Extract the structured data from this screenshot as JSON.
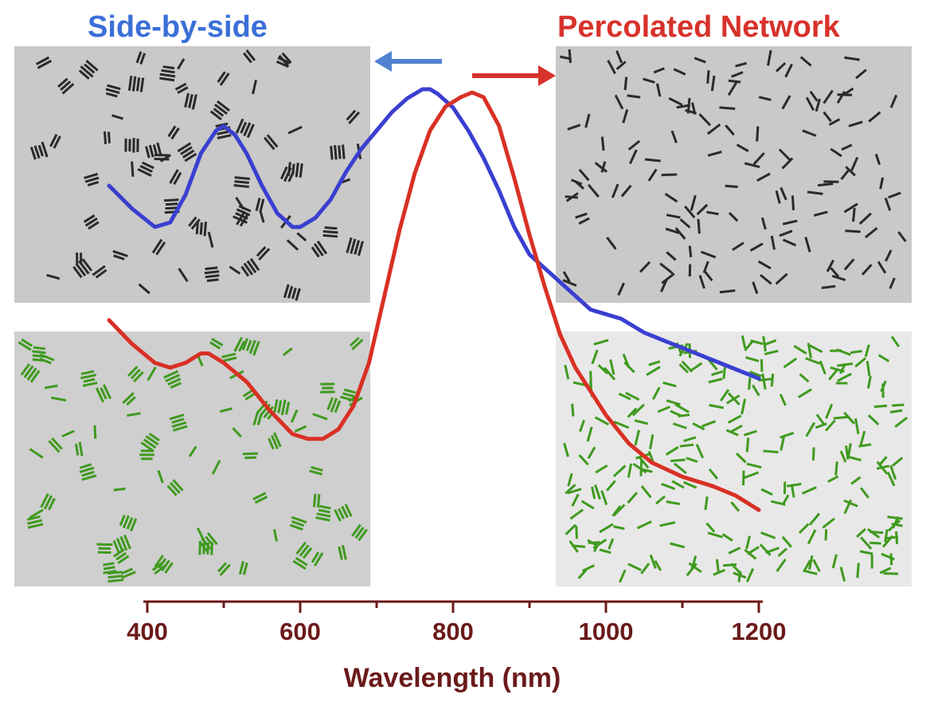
{
  "colors": {
    "side_by_side": "#3a3fd0",
    "percolated": "#d93025",
    "axis": "#6b1a1a",
    "side_label": "#3b6fd8",
    "perc_label": "#d7322b",
    "arrow_blue": "#4f81d2",
    "arrow_red": "#d7322b",
    "tem_bg": "#c9c9c9",
    "tem_rod": "#2a2a2a",
    "sim_bg_left": "#cfcfcf",
    "sim_bg_right": "#e8e8e8",
    "sim_rod": "#3f9a1e"
  },
  "panels": {
    "left_title": "Side-by-side",
    "right_title": "Percolated Network"
  },
  "chart_data": {
    "type": "line",
    "xlabel": "Wavelength (nm)",
    "ylabel": "",
    "xlim": [
      320,
      1410
    ],
    "xticks": [
      400,
      600,
      800,
      1000,
      1200
    ],
    "ylim": [
      0,
      1
    ],
    "grid": false,
    "series": [
      {
        "name": "Side-by-side",
        "x": [
          350,
          380,
          410,
          430,
          450,
          470,
          490,
          500,
          515,
          530,
          550,
          570,
          590,
          600,
          620,
          640,
          660,
          680,
          700,
          720,
          740,
          760,
          770,
          780,
          800,
          820,
          840,
          860,
          880,
          900,
          920,
          940,
          960,
          980,
          1000,
          1020,
          1050,
          1080,
          1110,
          1140,
          1170,
          1200
        ],
        "values": [
          0.79,
          0.74,
          0.7,
          0.71,
          0.77,
          0.86,
          0.91,
          0.92,
          0.9,
          0.86,
          0.79,
          0.73,
          0.7,
          0.7,
          0.72,
          0.76,
          0.82,
          0.87,
          0.91,
          0.95,
          0.98,
          1.0,
          1.0,
          0.99,
          0.96,
          0.91,
          0.85,
          0.78,
          0.7,
          0.64,
          0.61,
          0.58,
          0.55,
          0.52,
          0.51,
          0.5,
          0.47,
          0.45,
          0.43,
          0.41,
          0.39,
          0.37
        ]
      },
      {
        "name": "Percolated Network",
        "x": [
          350,
          380,
          410,
          430,
          450,
          470,
          480,
          500,
          530,
          560,
          590,
          610,
          630,
          650,
          670,
          690,
          710,
          730,
          750,
          770,
          790,
          810,
          825,
          840,
          860,
          880,
          900,
          920,
          940,
          960,
          980,
          1000,
          1030,
          1060,
          1100,
          1140,
          1170,
          1200
        ],
        "values": [
          0.52,
          0.47,
          0.43,
          0.42,
          0.43,
          0.45,
          0.45,
          0.43,
          0.39,
          0.33,
          0.28,
          0.27,
          0.27,
          0.29,
          0.34,
          0.43,
          0.57,
          0.71,
          0.83,
          0.92,
          0.97,
          0.99,
          1.0,
          0.99,
          0.93,
          0.82,
          0.7,
          0.59,
          0.49,
          0.42,
          0.37,
          0.32,
          0.26,
          0.22,
          0.19,
          0.17,
          0.15,
          0.12
        ]
      }
    ]
  }
}
